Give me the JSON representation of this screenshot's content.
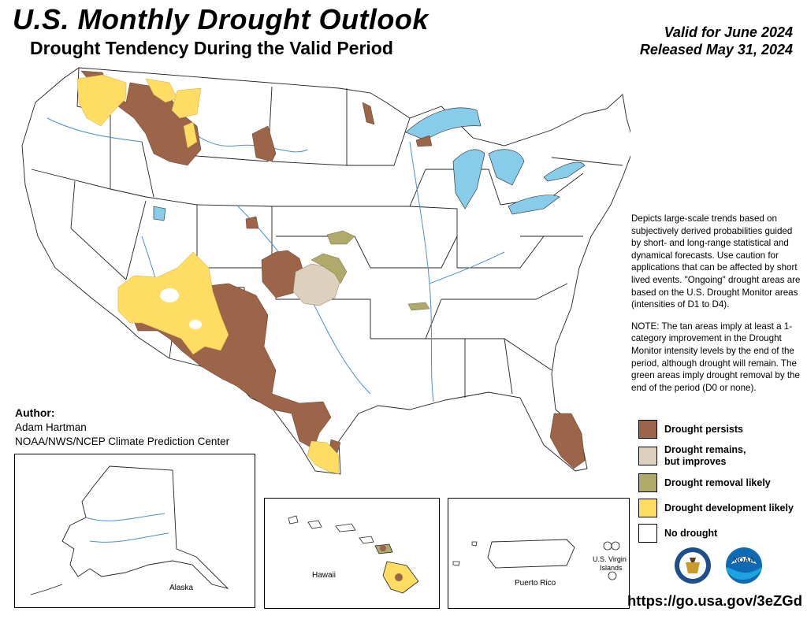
{
  "header": {
    "title": "U.S. Monthly Drought Outlook",
    "subtitle": "Drought Tendency During the Valid Period",
    "valid": "Valid for June 2024",
    "released": "Released May 31, 2024"
  },
  "description": {
    "p1": "Depicts large-scale trends based on subjectively derived probabilities guided by short- and long-range statistical and dynamical forecasts. Use caution for applications that can be affected by short lived events. \"Ongoing\" drought areas are based on the U.S. Drought Monitor areas (intensities of D1 to D4).",
    "p2": "NOTE: The tan areas imply at least a 1-category improvement in the Drought Monitor intensity levels by the end of the period, although drought will remain. The green areas imply drought removal by the end of the period (D0 or none)."
  },
  "legend": [
    {
      "label": "Drought persists",
      "color": "#9c6448"
    },
    {
      "label": "Drought remains,\nbut improves",
      "color": "#ddd0bd"
    },
    {
      "label": "Drought removal likely",
      "color": "#b0aa6a"
    },
    {
      "label": "Drought development likely",
      "color": "#ffdd63"
    },
    {
      "label": "No drought",
      "color": "#ffffff"
    }
  ],
  "author": {
    "heading": "Author:",
    "name": "Adam Hartman",
    "org": "NOAA/NWS/NCEP Climate Prediction Center"
  },
  "insets": {
    "alaska": "Alaska",
    "hawaii": "Hawaii",
    "puerto_rico": "Puerto Rico",
    "virgin_islands_1": "U.S. Virgin",
    "virgin_islands_2": "Islands"
  },
  "logos": {
    "doc": "department-of-commerce-seal",
    "noaa": "NOAA",
    "noaa_icon": "noaa-logo"
  },
  "url": "https://go.usa.gov/3eZGd",
  "colors": {
    "persists": "#9c6448",
    "improves": "#ddd0bd",
    "removal": "#b0aa6a",
    "development": "#ffdd63",
    "water": "#87cdea",
    "river": "#4a90d0"
  }
}
